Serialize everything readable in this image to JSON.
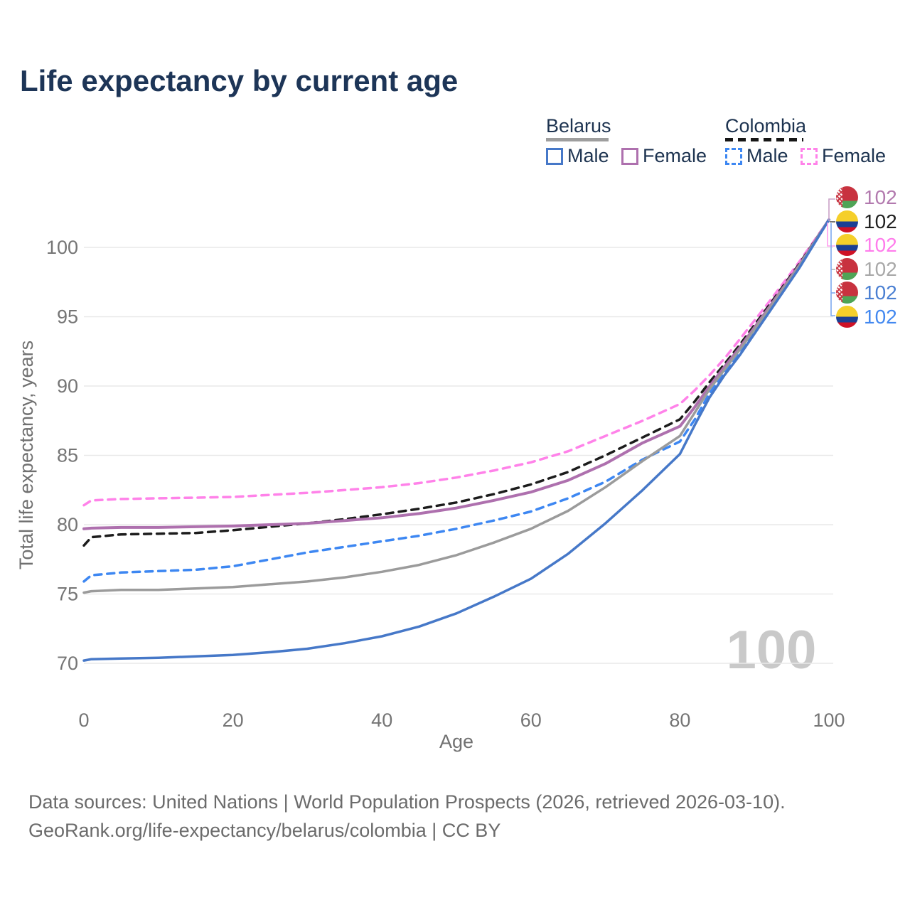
{
  "title": "Life expectancy by current age",
  "legend": {
    "groups": [
      {
        "country": "Belarus",
        "line_style": "solid",
        "items": [
          {
            "label": "Male",
            "color": "#4678c8",
            "dashed": false
          },
          {
            "label": "Female",
            "color": "#ae70ae",
            "dashed": false
          }
        ]
      },
      {
        "country": "Colombia",
        "line_style": "dashed",
        "items": [
          {
            "label": "Male",
            "color": "#3d87f2",
            "dashed": true
          },
          {
            "label": "Female",
            "color": "#ff82e9",
            "dashed": true
          }
        ]
      }
    ]
  },
  "chart_data": {
    "type": "line",
    "title": "Life expectancy by current age",
    "xlabel": "Age",
    "ylabel": "Total life expectancy, years",
    "xlim": [
      0,
      100
    ],
    "ylim": [
      68,
      103
    ],
    "x_ticks": [
      0,
      20,
      40,
      60,
      80,
      100
    ],
    "y_ticks": [
      70,
      75,
      80,
      85,
      90,
      95,
      100
    ],
    "grid": "horizontal",
    "legend_position": "top-right",
    "watermark": "100",
    "series": [
      {
        "name": "Colombia Female",
        "country": "Colombia",
        "sex": "Female",
        "color": "#ff82e9",
        "dashed": true,
        "width": 3.5,
        "points": [
          [
            0,
            81.4
          ],
          [
            1,
            81.75
          ],
          [
            5,
            81.85
          ],
          [
            10,
            81.9
          ],
          [
            15,
            81.95
          ],
          [
            20,
            82.0
          ],
          [
            25,
            82.15
          ],
          [
            30,
            82.3
          ],
          [
            35,
            82.5
          ],
          [
            40,
            82.7
          ],
          [
            45,
            83.0
          ],
          [
            50,
            83.4
          ],
          [
            55,
            83.9
          ],
          [
            60,
            84.5
          ],
          [
            65,
            85.3
          ],
          [
            70,
            86.4
          ],
          [
            75,
            87.5
          ],
          [
            80,
            88.7
          ],
          [
            82,
            89.7
          ],
          [
            84,
            90.8
          ],
          [
            86,
            92.0
          ],
          [
            88,
            93.35
          ],
          [
            92,
            96.1
          ],
          [
            96,
            98.95
          ],
          [
            100,
            102
          ]
        ]
      },
      {
        "name": "Colombia",
        "country": "Colombia",
        "sex": "Both",
        "color": "#1c1c1c",
        "dashed": true,
        "width": 3.5,
        "points": [
          [
            0,
            78.5
          ],
          [
            1,
            79.1
          ],
          [
            5,
            79.3
          ],
          [
            10,
            79.35
          ],
          [
            15,
            79.4
          ],
          [
            20,
            79.6
          ],
          [
            25,
            79.85
          ],
          [
            30,
            80.1
          ],
          [
            35,
            80.4
          ],
          [
            40,
            80.75
          ],
          [
            45,
            81.15
          ],
          [
            50,
            81.6
          ],
          [
            55,
            82.2
          ],
          [
            60,
            82.9
          ],
          [
            65,
            83.8
          ],
          [
            70,
            85.0
          ],
          [
            75,
            86.3
          ],
          [
            80,
            87.6
          ],
          [
            82,
            88.9
          ],
          [
            84,
            90.3
          ],
          [
            86,
            91.6
          ],
          [
            88,
            92.95
          ],
          [
            92,
            95.85
          ],
          [
            96,
            98.8
          ],
          [
            100,
            102
          ]
        ]
      },
      {
        "name": "Belarus Female",
        "country": "Belarus",
        "sex": "Female",
        "color": "#ae70ae",
        "dashed": false,
        "width": 4,
        "points": [
          [
            0,
            79.7
          ],
          [
            1,
            79.75
          ],
          [
            5,
            79.8
          ],
          [
            10,
            79.8
          ],
          [
            15,
            79.85
          ],
          [
            20,
            79.9
          ],
          [
            25,
            80.0
          ],
          [
            30,
            80.1
          ],
          [
            35,
            80.3
          ],
          [
            40,
            80.5
          ],
          [
            45,
            80.8
          ],
          [
            50,
            81.2
          ],
          [
            55,
            81.75
          ],
          [
            60,
            82.35
          ],
          [
            65,
            83.2
          ],
          [
            70,
            84.4
          ],
          [
            75,
            85.9
          ],
          [
            80,
            87.1
          ],
          [
            82,
            88.5
          ],
          [
            84,
            90.0
          ],
          [
            86,
            91.4
          ],
          [
            88,
            92.75
          ],
          [
            92,
            95.7
          ],
          [
            96,
            98.7
          ],
          [
            100,
            102
          ]
        ]
      },
      {
        "name": "Colombia Male",
        "country": "Colombia",
        "sex": "Male",
        "color": "#3d87f2",
        "dashed": true,
        "width": 3.5,
        "points": [
          [
            0,
            75.9
          ],
          [
            1,
            76.35
          ],
          [
            5,
            76.55
          ],
          [
            10,
            76.65
          ],
          [
            15,
            76.75
          ],
          [
            20,
            77.0
          ],
          [
            25,
            77.5
          ],
          [
            30,
            78.0
          ],
          [
            35,
            78.4
          ],
          [
            40,
            78.8
          ],
          [
            45,
            79.2
          ],
          [
            50,
            79.7
          ],
          [
            55,
            80.3
          ],
          [
            60,
            80.95
          ],
          [
            65,
            81.9
          ],
          [
            70,
            83.1
          ],
          [
            75,
            84.7
          ],
          [
            80,
            86.0
          ],
          [
            82,
            87.6
          ],
          [
            84,
            89.5
          ],
          [
            86,
            91.0
          ],
          [
            88,
            92.45
          ],
          [
            92,
            95.5
          ],
          [
            96,
            98.6
          ],
          [
            100,
            102
          ]
        ]
      },
      {
        "name": "Belarus",
        "country": "Belarus",
        "sex": "Both",
        "color": "#9b9b9b",
        "dashed": false,
        "width": 3.5,
        "points": [
          [
            0,
            75.1
          ],
          [
            1,
            75.2
          ],
          [
            5,
            75.3
          ],
          [
            10,
            75.3
          ],
          [
            15,
            75.4
          ],
          [
            20,
            75.5
          ],
          [
            25,
            75.7
          ],
          [
            30,
            75.9
          ],
          [
            35,
            76.2
          ],
          [
            40,
            76.6
          ],
          [
            45,
            77.1
          ],
          [
            50,
            77.8
          ],
          [
            55,
            78.7
          ],
          [
            60,
            79.7
          ],
          [
            65,
            81.0
          ],
          [
            70,
            82.7
          ],
          [
            75,
            84.6
          ],
          [
            80,
            86.4
          ],
          [
            82,
            88.1
          ],
          [
            84,
            89.8
          ],
          [
            86,
            91.2
          ],
          [
            88,
            92.6
          ],
          [
            92,
            95.6
          ],
          [
            96,
            98.65
          ],
          [
            100,
            102
          ]
        ]
      },
      {
        "name": "Belarus Male",
        "country": "Belarus",
        "sex": "Male",
        "color": "#4678c8",
        "dashed": false,
        "width": 3.5,
        "points": [
          [
            0,
            70.2
          ],
          [
            1,
            70.3
          ],
          [
            5,
            70.35
          ],
          [
            10,
            70.4
          ],
          [
            15,
            70.5
          ],
          [
            20,
            70.6
          ],
          [
            25,
            70.8
          ],
          [
            30,
            71.05
          ],
          [
            35,
            71.45
          ],
          [
            40,
            71.95
          ],
          [
            45,
            72.65
          ],
          [
            50,
            73.6
          ],
          [
            55,
            74.8
          ],
          [
            60,
            76.1
          ],
          [
            65,
            77.9
          ],
          [
            70,
            80.1
          ],
          [
            75,
            82.5
          ],
          [
            80,
            85.1
          ],
          [
            82,
            87.2
          ],
          [
            84,
            89.2
          ],
          [
            86,
            90.8
          ],
          [
            88,
            92.2
          ],
          [
            92,
            95.35
          ],
          [
            96,
            98.5
          ],
          [
            100,
            102
          ]
        ]
      }
    ],
    "end_labels": [
      {
        "flag": "belarus",
        "value": "102",
        "color": "#b279ae",
        "series": "Belarus Female"
      },
      {
        "flag": "colombia",
        "value": "102",
        "color": "#1f1f1f",
        "series": "Colombia"
      },
      {
        "flag": "colombia",
        "value": "102",
        "color": "#ff7cec",
        "series": "Colombia Female"
      },
      {
        "flag": "belarus",
        "value": "102",
        "color": "#a8a8a8",
        "series": "Belarus"
      },
      {
        "flag": "belarus",
        "value": "102",
        "color": "#4a7fd2",
        "series": "Belarus Male"
      },
      {
        "flag": "colombia",
        "value": "102",
        "color": "#4288f0",
        "series": "Colombia Male"
      }
    ]
  },
  "footer": {
    "line1": "Data sources: United Nations | World Population Prospects (2026, retrieved 2026-03-10).",
    "line2": "GeoRank.org/life-expectancy/belarus/colombia | CC BY"
  }
}
